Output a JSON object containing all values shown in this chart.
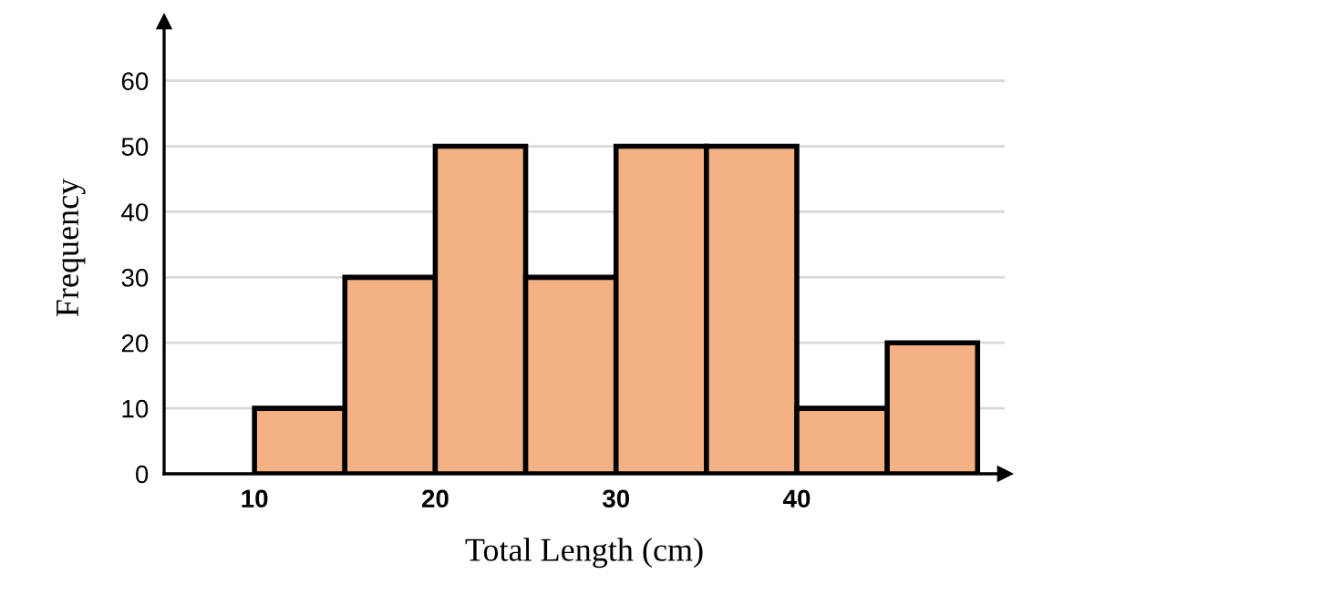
{
  "chart_data": {
    "type": "histogram",
    "xlabel": "Total Length (cm)",
    "ylabel": "Frequency",
    "bins": [
      10,
      15,
      20,
      25,
      30,
      35,
      40,
      45,
      50
    ],
    "values": [
      10,
      30,
      50,
      30,
      50,
      50,
      10,
      20
    ],
    "color": "#f4b183",
    "xlim": [
      5,
      51.5
    ],
    "xticks": [
      10,
      20,
      30,
      40
    ],
    "ylim": [
      0,
      69
    ],
    "yticks": [
      0,
      10,
      20,
      30,
      40,
      50,
      60
    ],
    "grid": "y"
  }
}
